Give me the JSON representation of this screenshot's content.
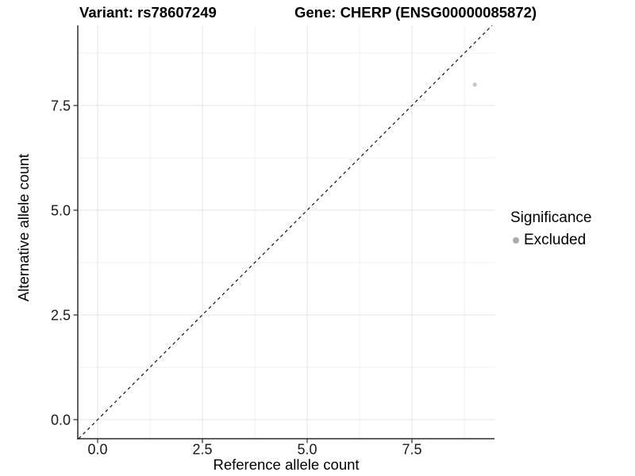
{
  "titles": {
    "variant": "Variant: rs78607249",
    "gene": "Gene: CHERP (ENSG00000085872)"
  },
  "chart_data": {
    "type": "scatter",
    "title": "Variant: rs78607249   Gene: CHERP (ENSG00000085872)",
    "xlabel": "Reference allele count",
    "ylabel": "Alternative allele count",
    "xlim": [
      -0.473,
      9.47
    ],
    "ylim": [
      -0.455,
      9.413
    ],
    "x_major_ticks": [
      0,
      2.5,
      5,
      7.5
    ],
    "x_tick_labels": [
      "0.0",
      "2.5",
      "5.0",
      "7.5"
    ],
    "y_major_ticks": [
      0,
      2.5,
      5,
      7.5
    ],
    "y_tick_labels": [
      "0.0",
      "2.5",
      "5.0",
      "7.5"
    ],
    "minor_tick_step": 1.25,
    "grid": true,
    "identity_line": {
      "slope": 1,
      "intercept": 0,
      "style": "dashed",
      "color": "#000000"
    },
    "points": [
      {
        "x": 9,
        "y": 8,
        "significance": "Excluded"
      }
    ],
    "legend": {
      "title": "Significance",
      "position": "right",
      "items": [
        {
          "label": "Excluded",
          "marker": "circle",
          "color": "#ababab"
        }
      ]
    },
    "colors": {
      "point": "#c6c6c6",
      "legend_key": "#ababab",
      "grid_major": "#e4e4e4",
      "grid_minor": "#efefef",
      "axis_line": "#2b2b2b",
      "tick_text": "#1a1a1a",
      "background": "#ffffff"
    }
  }
}
